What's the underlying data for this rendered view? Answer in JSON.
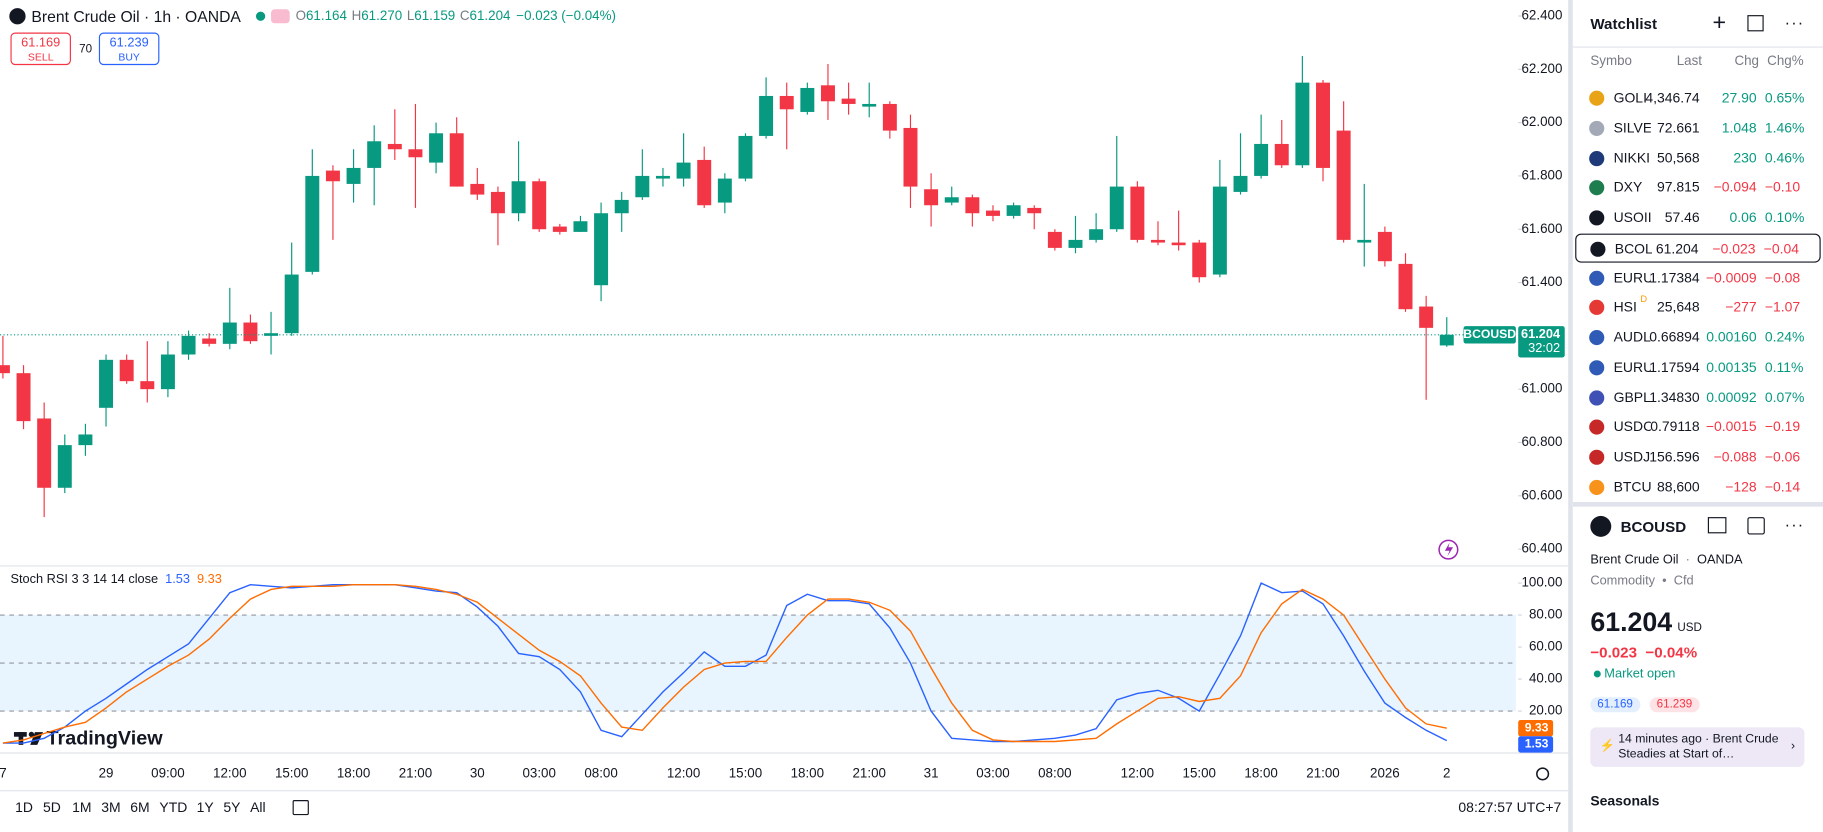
{
  "header": {
    "symbol_title": "Brent Crude Oil · 1h · OANDA",
    "ohlc": [
      {
        "label": "O",
        "value": "61.164"
      },
      {
        "label": "H",
        "value": "61.270"
      },
      {
        "label": "L",
        "value": "61.159"
      },
      {
        "label": "C",
        "value": "61.204"
      }
    ],
    "change": "−0.023 (−0.04%)",
    "sell": {
      "price": "61.169",
      "label": "SELL"
    },
    "buy": {
      "price": "61.239",
      "label": "BUY"
    },
    "spread": "70"
  },
  "chart_data": [
    {
      "type": "candlestick",
      "categories": [
        "7",
        null,
        null,
        null,
        null,
        "29",
        null,
        null,
        "09:00",
        null,
        null,
        "12:00",
        null,
        null,
        "15:00",
        null,
        null,
        "18:00",
        null,
        null,
        "21:00",
        null,
        null,
        "30",
        null,
        null,
        "03:00",
        null,
        null,
        "08:00",
        null,
        null,
        null,
        "12:00",
        null,
        null,
        "15:00",
        null,
        null,
        "18:00",
        null,
        null,
        "21:00",
        null,
        null,
        "31",
        null,
        null,
        "03:00",
        null,
        null,
        "08:00",
        null,
        null,
        null,
        "12:00",
        null,
        null,
        "15:00",
        null,
        null,
        "18:00",
        null,
        null,
        "21:00",
        null,
        null,
        "2026",
        null,
        null,
        "2"
      ],
      "open": [
        61.09,
        61.06,
        60.89,
        60.63,
        60.79,
        60.93,
        61.11,
        61.03,
        61.0,
        61.13,
        61.19,
        61.17,
        61.25,
        61.2,
        61.21,
        61.44,
        61.82,
        61.77,
        61.83,
        61.92,
        61.9,
        61.85,
        61.96,
        61.77,
        61.74,
        61.66,
        61.78,
        61.61,
        61.59,
        61.39,
        61.66,
        61.72,
        61.79,
        61.79,
        61.86,
        61.7,
        61.79,
        61.95,
        62.1,
        62.04,
        62.14,
        62.09,
        62.06,
        62.07,
        61.98,
        61.75,
        61.7,
        61.72,
        61.67,
        61.65,
        61.68,
        61.59,
        61.53,
        61.56,
        61.6,
        61.76,
        61.56,
        61.55,
        61.55,
        61.43,
        61.74,
        61.8,
        61.92,
        61.84,
        62.15,
        61.97,
        61.55,
        61.59,
        61.47,
        61.31,
        61.164
      ],
      "high": [
        61.2,
        61.09,
        60.95,
        60.83,
        60.87,
        61.13,
        61.13,
        61.18,
        61.18,
        61.22,
        61.21,
        61.38,
        61.28,
        61.29,
        61.55,
        61.9,
        61.84,
        61.9,
        61.99,
        62.05,
        62.07,
        62.0,
        62.02,
        61.83,
        61.76,
        61.93,
        61.79,
        61.62,
        61.65,
        61.7,
        61.74,
        61.9,
        61.83,
        61.96,
        61.91,
        61.81,
        61.96,
        62.17,
        62.15,
        62.15,
        62.22,
        62.15,
        62.15,
        62.08,
        62.03,
        61.81,
        61.76,
        61.73,
        61.69,
        61.7,
        61.69,
        61.6,
        61.65,
        61.66,
        61.95,
        61.78,
        61.63,
        61.67,
        61.56,
        61.86,
        61.96,
        62.03,
        62.01,
        62.25,
        62.16,
        62.08,
        61.77,
        61.61,
        61.51,
        61.35,
        61.27
      ],
      "low": [
        61.04,
        60.85,
        60.52,
        60.61,
        60.75,
        60.86,
        61.02,
        60.95,
        60.97,
        61.11,
        61.16,
        61.15,
        61.17,
        61.13,
        61.2,
        61.43,
        61.56,
        61.7,
        61.69,
        61.86,
        61.68,
        61.81,
        61.76,
        61.71,
        61.54,
        61.63,
        61.59,
        61.58,
        61.59,
        61.33,
        61.59,
        61.71,
        61.76,
        61.76,
        61.68,
        61.66,
        61.78,
        61.94,
        61.9,
        62.03,
        62.01,
        62.03,
        62.02,
        61.94,
        61.68,
        61.61,
        61.69,
        61.61,
        61.63,
        61.64,
        61.6,
        61.52,
        61.51,
        61.55,
        61.59,
        61.55,
        61.54,
        61.52,
        61.4,
        61.42,
        61.73,
        61.79,
        61.83,
        61.83,
        61.78,
        61.55,
        61.46,
        61.46,
        61.29,
        60.96,
        61.159
      ],
      "close": [
        61.06,
        60.88,
        60.63,
        60.79,
        60.83,
        61.11,
        61.03,
        61.0,
        61.13,
        61.2,
        61.17,
        61.25,
        61.18,
        61.21,
        61.43,
        61.8,
        61.78,
        61.83,
        61.93,
        61.9,
        61.87,
        61.96,
        61.76,
        61.73,
        61.66,
        61.78,
        61.6,
        61.59,
        61.63,
        61.66,
        61.71,
        61.8,
        61.8,
        61.85,
        61.69,
        61.79,
        61.95,
        62.1,
        62.05,
        62.13,
        62.08,
        62.07,
        62.07,
        61.97,
        61.76,
        61.69,
        61.72,
        61.66,
        61.65,
        61.69,
        61.66,
        61.53,
        61.56,
        61.6,
        61.76,
        61.56,
        61.55,
        61.54,
        61.42,
        61.76,
        61.8,
        61.92,
        61.84,
        62.15,
        61.83,
        61.56,
        61.56,
        61.48,
        61.3,
        61.23,
        61.204
      ],
      "up_color": "#089981",
      "down_color": "#f23645",
      "ylim": [
        60.35,
        62.46
      ],
      "yticks": [
        {
          "value": 60.4,
          "label": "60.400"
        },
        {
          "value": 60.6,
          "label": "60.600"
        },
        {
          "value": 60.8,
          "label": "60.800"
        },
        {
          "value": 61.0,
          "label": "61.000"
        },
        {
          "value": 61.2,
          "label": "61.200"
        },
        {
          "value": 61.4,
          "label": "61.400"
        },
        {
          "value": 61.6,
          "label": "61.600"
        },
        {
          "value": 61.8,
          "label": "61.800"
        },
        {
          "value": 62.0,
          "label": "62.000"
        },
        {
          "value": 62.2,
          "label": "62.200"
        },
        {
          "value": 62.4,
          "label": "62.400"
        }
      ]
    },
    {
      "type": "line",
      "title": "Stoch RSI 3 3 14 14 close",
      "series": [
        {
          "color": "#2962ff",
          "values": [
            0,
            0,
            3,
            10,
            20,
            28,
            37,
            46,
            54,
            62,
            78,
            94,
            99,
            98,
            97,
            98,
            99,
            99,
            99,
            99,
            97,
            95,
            94,
            85,
            73,
            56,
            54,
            46,
            32,
            8,
            4,
            18,
            32,
            44,
            57,
            48,
            48,
            55,
            86,
            93,
            89,
            89,
            87,
            72,
            50,
            20,
            3,
            2,
            1,
            1,
            2,
            3,
            5,
            9,
            27,
            31,
            33,
            28,
            20,
            43,
            67,
            100,
            94,
            95,
            87,
            67,
            45,
            25,
            16,
            8,
            1.53
          ]
        },
        {
          "color": "#ff6d00",
          "values": [
            0,
            2,
            6,
            10,
            13,
            22,
            32,
            40,
            48,
            55,
            65,
            78,
            90,
            96,
            98,
            98,
            98,
            99,
            99,
            99,
            98,
            96,
            93,
            88,
            78,
            68,
            58,
            51,
            42,
            25,
            10,
            8,
            22,
            35,
            46,
            50,
            51,
            51,
            66,
            80,
            90,
            90,
            88,
            83,
            70,
            47,
            25,
            8,
            2,
            1,
            1,
            1,
            2,
            3,
            12,
            20,
            28,
            29,
            26,
            28,
            42,
            69,
            87,
            96,
            90,
            80,
            60,
            40,
            22,
            12,
            9.33
          ]
        }
      ],
      "band_color": "#2196f3",
      "band": [
        20,
        80
      ],
      "midline": 50,
      "ylim": [
        -4,
        110
      ],
      "yticks": [
        {
          "value": 20,
          "label": "20.00"
        },
        {
          "value": 40,
          "label": "40.00"
        },
        {
          "value": 60,
          "label": "60.00"
        },
        {
          "value": 80,
          "label": "80.00"
        },
        {
          "value": 100,
          "label": "100.00"
        }
      ]
    }
  ],
  "price_tag": {
    "symbol": "BCOUSD",
    "countdown": "32:02"
  },
  "logo": "TradingView",
  "toolbar": {
    "ranges": [
      "1D",
      "5D",
      "1M",
      "3M",
      "6M",
      "YTD",
      "1Y",
      "5Y",
      "All"
    ],
    "clock": "08:27:57 UTC+7"
  },
  "watchlist": {
    "title": "Watchlist",
    "columns": [
      "Symbo",
      "Last",
      "Chg",
      "Chg%"
    ],
    "rows": [
      {
        "symbol": "GOLI",
        "last": "4,346.74",
        "chg": "27.90",
        "chg_pct": "0.65%",
        "up": true,
        "icon_color": "#e8a317"
      },
      {
        "symbol": "SILVE",
        "last": "72.661",
        "chg": "1.048",
        "chg_pct": "1.46%",
        "up": true,
        "icon_color": "#a3a9b7"
      },
      {
        "symbol": "NIKKI",
        "last": "50,568",
        "chg": "230",
        "chg_pct": "0.46%",
        "up": true,
        "icon_color": "#1e3a78"
      },
      {
        "symbol": "DXY",
        "last": "97.815",
        "chg": "−0.094",
        "chg_pct": "−0.10",
        "up": false,
        "icon_color": "#1d7d4e"
      },
      {
        "symbol": "USOII",
        "last": "57.46",
        "chg": "0.06",
        "chg_pct": "0.10%",
        "up": true,
        "icon_color": "#131722"
      },
      {
        "symbol": "BCOL",
        "last": "61.204",
        "chg": "−0.023",
        "chg_pct": "−0.04",
        "up": false,
        "icon_color": "#131722",
        "selected": true
      },
      {
        "symbol": "EURU",
        "last": "1.17384",
        "chg": "−0.0009",
        "chg_pct": "−0.08",
        "up": false,
        "icon_color": "#2f5bb7"
      },
      {
        "symbol": "HSI",
        "badge": "D",
        "last": "25,648",
        "chg": "−277",
        "chg_pct": "−1.07",
        "up": false,
        "icon_color": "#e53935"
      },
      {
        "symbol": "AUDL",
        "last": "0.66894",
        "chg": "0.00160",
        "chg_pct": "0.24%",
        "up": true,
        "icon_color": "#2f5bb7"
      },
      {
        "symbol": "EURU",
        "last": "1.17594",
        "chg": "0.00135",
        "chg_pct": "0.11%",
        "up": true,
        "icon_color": "#2f5bb7"
      },
      {
        "symbol": "GBPL",
        "last": "1.34830",
        "chg": "0.00092",
        "chg_pct": "0.07%",
        "up": true,
        "icon_color": "#3f51b5"
      },
      {
        "symbol": "USDC",
        "last": "0.79118",
        "chg": "−0.0015",
        "chg_pct": "−0.19",
        "up": false,
        "icon_color": "#c62828"
      },
      {
        "symbol": "USDJ",
        "last": "156.596",
        "chg": "−0.088",
        "chg_pct": "−0.06",
        "up": false,
        "icon_color": "#c62828"
      },
      {
        "symbol": "BTCU",
        "last": "88,600",
        "chg": "−128",
        "chg_pct": "−0.14",
        "up": false,
        "icon_color": "#f7931a"
      }
    ]
  },
  "details": {
    "symbol": "BCOUSD",
    "name": "Brent Crude Oil",
    "exchange": "OANDA",
    "category": "Commodity",
    "kind": "Cfd",
    "price": "61.204",
    "currency": "USD",
    "change": "−0.023",
    "change_pct": "−0.04%",
    "status": "Market open",
    "bid": "61.169",
    "ask": "61.239",
    "news_time": "14 minutes ago",
    "news_title": "Brent Crude Steadies at Start of…",
    "section": "Seasonals"
  }
}
